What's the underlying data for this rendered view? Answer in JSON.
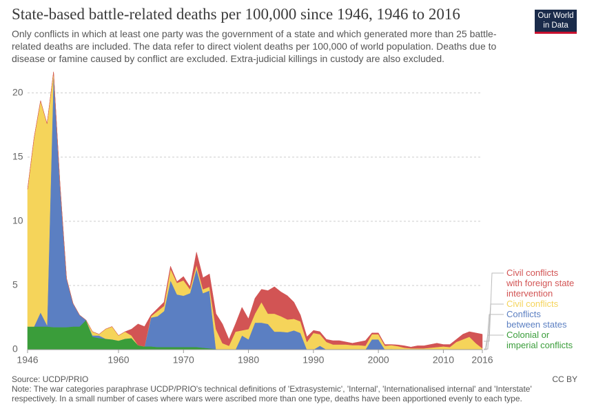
{
  "chart_data": {
    "type": "stacked-area",
    "title": "State-based battle-related deaths per 100,000 since 1946, 1946 to 2016",
    "subtitle": "Only conflicts in which at least one party was the government of a state and which generated more than 25 battle-related deaths are included. The data refer to direct violent deaths per 100,000 of world population. Deaths due to disease or famine caused by conflict are excluded. Extra-judicial killings in custody are also excluded.",
    "logo": {
      "line1": "Our World",
      "line2": "in Data"
    },
    "source": "Source: UCDP/PRIO",
    "license": "CC BY",
    "note": "Note: The war categories paraphrase UCDP/PRIO's technical definitions of 'Extrasystemic', 'Internal', 'Internationalised internal' and 'Interstate' respectively. In a small number of cases where wars were ascribed more than one type, deaths have been apportioned evenly to each type.",
    "x": [
      1946,
      1947,
      1948,
      1949,
      1950,
      1951,
      1952,
      1953,
      1954,
      1955,
      1956,
      1957,
      1958,
      1959,
      1960,
      1961,
      1962,
      1963,
      1964,
      1965,
      1966,
      1967,
      1968,
      1969,
      1970,
      1971,
      1972,
      1973,
      1974,
      1975,
      1976,
      1977,
      1978,
      1979,
      1980,
      1981,
      1982,
      1983,
      1984,
      1985,
      1986,
      1987,
      1988,
      1989,
      1990,
      1991,
      1992,
      1993,
      1994,
      1995,
      1996,
      1997,
      1998,
      1999,
      2000,
      2001,
      2002,
      2003,
      2004,
      2005,
      2006,
      2007,
      2008,
      2009,
      2010,
      2011,
      2012,
      2013,
      2014,
      2015,
      2016
    ],
    "xlim": [
      1946,
      2016
    ],
    "xticks": [
      1946,
      1960,
      1970,
      1980,
      1990,
      2000,
      2010,
      2016
    ],
    "ylim": [
      0,
      21.6
    ],
    "yticks": [
      0,
      5,
      10,
      15,
      20
    ],
    "grid": true,
    "series": [
      {
        "name": "Colonial or imperial conflicts",
        "color": "#3a9d3a",
        "values": [
          1.8,
          1.8,
          1.8,
          1.8,
          1.75,
          1.75,
          1.75,
          1.8,
          1.8,
          2.3,
          1.0,
          0.9,
          0.85,
          0.8,
          0.7,
          0.85,
          0.9,
          0.35,
          0.25,
          0.25,
          0.2,
          0.2,
          0.2,
          0.2,
          0.2,
          0.2,
          0.2,
          0.15,
          0.1,
          0.05,
          0,
          0,
          0,
          0,
          0,
          0,
          0,
          0,
          0,
          0,
          0,
          0,
          0,
          0,
          0,
          0,
          0,
          0,
          0,
          0,
          0,
          0,
          0,
          0,
          0,
          0,
          0,
          0,
          0,
          0,
          0,
          0,
          0,
          0,
          0,
          0,
          0,
          0,
          0,
          0,
          0
        ]
      },
      {
        "name": "Conflicts between states",
        "color": "#5b7fc2",
        "values": [
          0,
          0,
          1.1,
          0.1,
          19.8,
          11,
          3.8,
          1.8,
          0.9,
          0,
          0.1,
          0.2,
          0,
          0,
          0,
          0,
          0,
          0,
          0,
          2.25,
          2.4,
          2.8,
          5.2,
          4.1,
          4.0,
          4.2,
          6.1,
          4.25,
          4.5,
          0,
          0,
          0,
          0,
          1.1,
          0.8,
          2.1,
          2.1,
          2.0,
          1.4,
          1.4,
          1.35,
          1.5,
          1.3,
          0,
          0,
          0.3,
          0,
          0,
          0,
          0,
          0,
          0,
          0,
          0.8,
          0.8,
          0,
          0.05,
          0.02,
          0,
          0,
          0,
          0,
          0,
          0,
          0,
          0,
          0,
          0,
          0,
          0,
          0
        ]
      },
      {
        "name": "Civil conflicts",
        "color": "#f5d45a",
        "values": [
          10.7,
          14.7,
          16.5,
          15.7,
          0.1,
          0.1,
          0,
          0,
          0,
          0,
          0.3,
          0.1,
          0.75,
          1.0,
          0.4,
          0.55,
          0.2,
          0,
          0,
          0.1,
          0.4,
          0.4,
          0.9,
          0.9,
          1.2,
          0.3,
          0.3,
          0.3,
          0.3,
          1.55,
          0.5,
          0.3,
          1.4,
          0.4,
          0.8,
          0.7,
          1.6,
          0.8,
          1.4,
          1.2,
          1.0,
          0.9,
          0.9,
          0.6,
          1.3,
          0.9,
          0.6,
          0.4,
          0.4,
          0.4,
          0.35,
          0.35,
          0.3,
          0.4,
          0.4,
          0.3,
          0.3,
          0.25,
          0.15,
          0.1,
          0.1,
          0.1,
          0.15,
          0.2,
          0.25,
          0.2,
          0.6,
          0.8,
          1.0,
          0.5,
          0.1
        ]
      },
      {
        "name": "Civil conflicts with foreign state intervention",
        "color": "#d25454",
        "values": [
          0,
          0,
          0,
          0,
          0,
          0,
          0,
          0,
          0,
          0,
          0,
          0,
          0,
          0,
          0,
          0,
          0.5,
          1.65,
          1.55,
          0.1,
          0.2,
          0.3,
          0.2,
          0.1,
          0.3,
          0.2,
          1.0,
          0.9,
          1.0,
          1.2,
          1.5,
          0.5,
          0.6,
          1.8,
          0.8,
          1.2,
          1.0,
          1.8,
          2.1,
          1.9,
          1.85,
          1.3,
          0.5,
          0.4,
          0.2,
          0.2,
          0.2,
          0.3,
          0.3,
          0.2,
          0.15,
          0.25,
          0.4,
          0.1,
          0.1,
          0.1,
          0.05,
          0.1,
          0.15,
          0.1,
          0.2,
          0.2,
          0.25,
          0.3,
          0.15,
          0.2,
          0.2,
          0.4,
          0.4,
          0.8,
          1.1
        ]
      }
    ]
  }
}
